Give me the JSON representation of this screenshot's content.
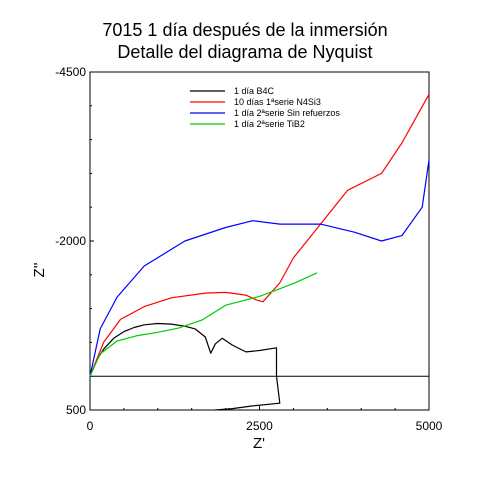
{
  "chart_data": {
    "type": "line",
    "title": "7015 1 día después de la inmersión",
    "subtitle": "Detalle del diagrama de Nyquist",
    "xlabel": "Z'",
    "ylabel": "Z''",
    "xlim": [
      0,
      5000
    ],
    "ylim": [
      500,
      -4500
    ],
    "x_ticks": [
      "0",
      "2500",
      "5000"
    ],
    "y_ticks": [
      "-4500",
      "-2000",
      "500"
    ],
    "y_tick_values": [
      -4500,
      -2000,
      500
    ],
    "x_tick_values": [
      0,
      2500,
      5000
    ],
    "legend_position": "top-right",
    "series": [
      {
        "name": "1 día B4C",
        "color": "#000000",
        "points": [
          [
            0,
            0
          ],
          [
            100,
            -240
          ],
          [
            200,
            -400
          ],
          [
            350,
            -560
          ],
          [
            500,
            -660
          ],
          [
            650,
            -720
          ],
          [
            800,
            -760
          ],
          [
            1000,
            -780
          ],
          [
            1200,
            -770
          ],
          [
            1400,
            -740
          ],
          [
            1550,
            -700
          ],
          [
            1700,
            -580
          ],
          [
            1780,
            -340
          ],
          [
            1850,
            -480
          ],
          [
            1950,
            -560
          ],
          [
            2100,
            -460
          ],
          [
            2300,
            -360
          ],
          [
            2500,
            -380
          ],
          [
            2750,
            -420
          ],
          [
            2750,
            -300
          ],
          [
            2750,
            0
          ],
          [
            2800,
            400
          ],
          [
            2400,
            440
          ],
          [
            2100,
            480
          ],
          [
            1850,
            500
          ]
        ]
      },
      {
        "name": "10 días 1ªserie N4Si3",
        "color": "#ff0000",
        "points": [
          [
            0,
            0
          ],
          [
            200,
            -500
          ],
          [
            450,
            -840
          ],
          [
            800,
            -1030
          ],
          [
            1200,
            -1160
          ],
          [
            1700,
            -1230
          ],
          [
            2000,
            -1240
          ],
          [
            2300,
            -1200
          ],
          [
            2450,
            -1130
          ],
          [
            2550,
            -1100
          ],
          [
            2800,
            -1380
          ],
          [
            3000,
            -1750
          ],
          [
            3400,
            -2250
          ],
          [
            3800,
            -2750
          ],
          [
            4300,
            -3000
          ],
          [
            4600,
            -3450
          ],
          [
            5000,
            -4170
          ]
        ]
      },
      {
        "name": "1 día 2ªserie Sin refuerzos",
        "color": "#0000ff",
        "points": [
          [
            0,
            0
          ],
          [
            150,
            -700
          ],
          [
            400,
            -1170
          ],
          [
            800,
            -1630
          ],
          [
            1400,
            -2000
          ],
          [
            2000,
            -2200
          ],
          [
            2400,
            -2300
          ],
          [
            2800,
            -2250
          ],
          [
            3400,
            -2250
          ],
          [
            3900,
            -2130
          ],
          [
            4300,
            -2000
          ],
          [
            4600,
            -2080
          ],
          [
            4900,
            -2500
          ],
          [
            5000,
            -3200
          ]
        ]
      },
      {
        "name": "1 día 2ªserie TiB2",
        "color": "#00cc00",
        "points": [
          [
            0,
            0
          ],
          [
            150,
            -330
          ],
          [
            400,
            -520
          ],
          [
            700,
            -600
          ],
          [
            1000,
            -650
          ],
          [
            1300,
            -710
          ],
          [
            1650,
            -830
          ],
          [
            2000,
            -1050
          ],
          [
            2500,
            -1180
          ],
          [
            3000,
            -1370
          ],
          [
            3350,
            -1530
          ]
        ]
      }
    ]
  }
}
